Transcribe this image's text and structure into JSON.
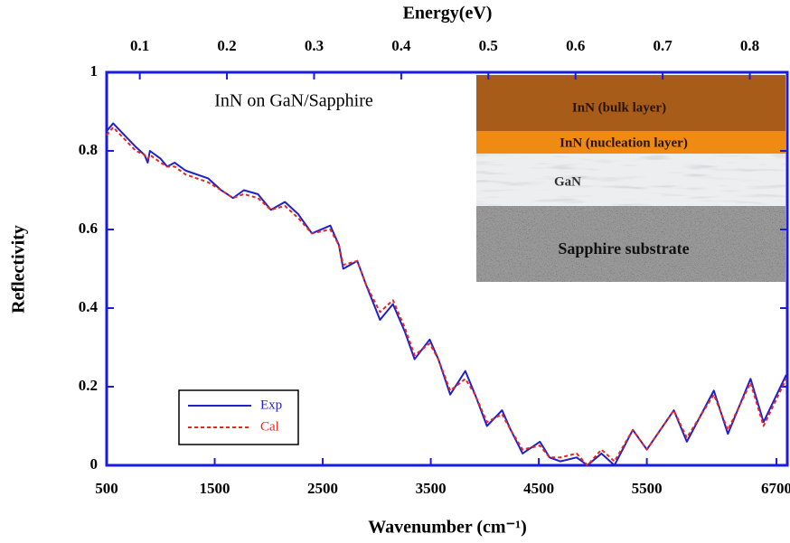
{
  "chart_data": {
    "type": "line",
    "title": "Energy(eV)",
    "xlabel": "Wavenumber (cm⁻¹)",
    "ylabel": "Reflectivity",
    "annotations": [
      "InN on GaN/Sapphire"
    ],
    "inset_layers": [
      "InN (bulk layer)",
      "InN (nucleation layer)",
      "GaN",
      "Sapphire substrate"
    ],
    "x": [
      500,
      560,
      770,
      850,
      880,
      900,
      1000,
      1060,
      1130,
      1230,
      1440,
      1560,
      1670,
      1770,
      1900,
      2020,
      2150,
      2270,
      2400,
      2570,
      2650,
      2690,
      2820,
      2900,
      3030,
      3150,
      3260,
      3350,
      3490,
      3570,
      3680,
      3820,
      3910,
      4020,
      4160,
      4240,
      4350,
      4510,
      4600,
      4700,
      4850,
      4950,
      5080,
      5200,
      5370,
      5500,
      5750,
      5870,
      6120,
      6250,
      6460,
      6580,
      6790
    ],
    "series": [
      {
        "name": "Exp",
        "color": "#1f1fcc",
        "dashed": false,
        "values": [
          0.85,
          0.87,
          0.81,
          0.79,
          0.77,
          0.8,
          0.78,
          0.76,
          0.77,
          0.75,
          0.73,
          0.7,
          0.68,
          0.7,
          0.69,
          0.65,
          0.67,
          0.64,
          0.59,
          0.61,
          0.56,
          0.5,
          0.52,
          0.46,
          0.37,
          0.41,
          0.34,
          0.27,
          0.32,
          0.27,
          0.18,
          0.24,
          0.18,
          0.1,
          0.14,
          0.09,
          0.03,
          0.06,
          0.02,
          0.01,
          0.02,
          0.0,
          0.03,
          0.0,
          0.09,
          0.04,
          0.14,
          0.06,
          0.19,
          0.08,
          0.22,
          0.11,
          0.23
        ]
      },
      {
        "name": "Cal",
        "color": "#e8261f",
        "dashed": true,
        "values": [
          0.84,
          0.86,
          0.8,
          0.79,
          0.78,
          0.79,
          0.77,
          0.76,
          0.76,
          0.74,
          0.72,
          0.7,
          0.68,
          0.69,
          0.68,
          0.65,
          0.66,
          0.63,
          0.59,
          0.6,
          0.56,
          0.51,
          0.52,
          0.46,
          0.39,
          0.42,
          0.35,
          0.28,
          0.31,
          0.27,
          0.19,
          0.22,
          0.18,
          0.11,
          0.13,
          0.09,
          0.04,
          0.05,
          0.02,
          0.02,
          0.03,
          0.0,
          0.04,
          0.01,
          0.09,
          0.04,
          0.14,
          0.07,
          0.18,
          0.09,
          0.21,
          0.1,
          0.22
        ]
      }
    ],
    "xlim": [
      500,
      6800
    ],
    "ylim": [
      0,
      1
    ],
    "xticks": [
      500,
      1500,
      2500,
      3500,
      4500,
      5500,
      6700
    ],
    "yticks": [
      0,
      0.2,
      0.4,
      0.6,
      0.8,
      1
    ],
    "x2lim": [
      0.062,
      0.843
    ],
    "x2ticks": [
      0.1,
      0.2,
      0.3,
      0.4,
      0.5,
      0.6,
      0.7,
      0.8
    ],
    "axis_color": "#1a1ae6",
    "legend": "lower-left"
  }
}
